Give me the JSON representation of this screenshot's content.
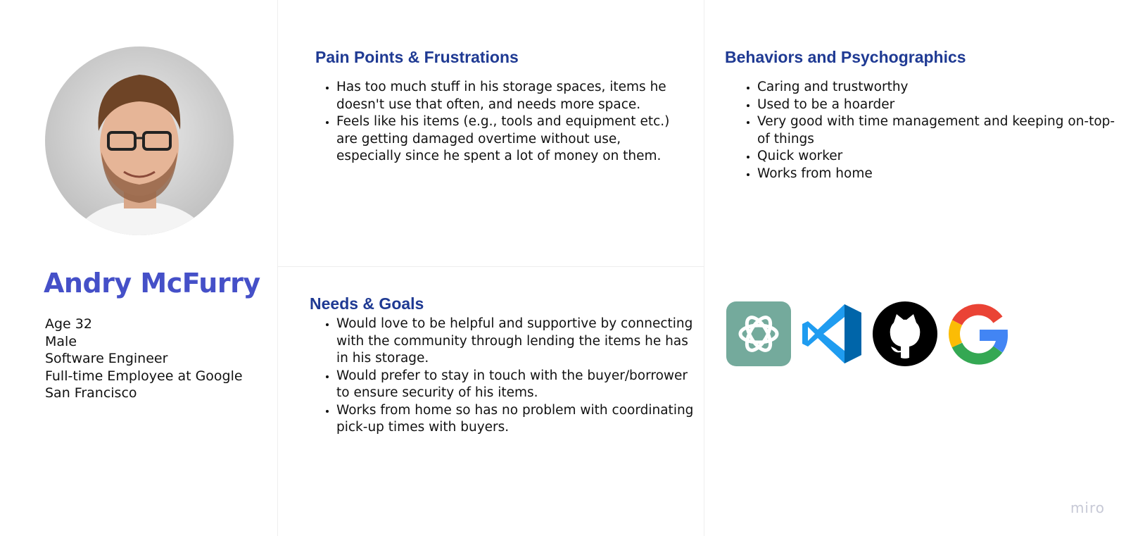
{
  "persona": {
    "name": "Andry McFurry",
    "demographics": [
      "Age 32",
      "Male",
      "Software Engineer",
      "Full-time Employee at Google",
      "San Francisco"
    ]
  },
  "pain_points": {
    "title": "Pain Points & Frustrations",
    "items": [
      "Has too much stuff in his storage spaces, items he doesn't use that often, and needs more space.",
      "Feels like his items (e.g., tools and equipment etc.) are getting damaged overtime without use, especially since he spent a lot of money on them."
    ]
  },
  "behaviors": {
    "title": "Behaviors and Psychographics",
    "items": [
      "Caring and trustworthy",
      "Used to be a hoarder",
      "Very good with time management and keeping on-top-of things",
      "Quick worker",
      "Works from home"
    ]
  },
  "needs": {
    "title": "Needs & Goals",
    "items": [
      "Would love to be helpful and supportive by connecting with the community through lending the items he has in his storage.",
      "Would prefer to stay in touch with the buyer/borrower to ensure security of his items.",
      "Works from home so has no problem with coordinating pick-up times with buyers."
    ]
  },
  "tools": [
    {
      "icon": "chatgpt-logo-icon",
      "color": "#74aa9c"
    },
    {
      "icon": "vscode-logo-icon",
      "color": "#0a7bd3"
    },
    {
      "icon": "github-logo-icon",
      "color": "#000000"
    },
    {
      "icon": "google-logo-icon",
      "color": "#4285f4"
    }
  ],
  "brand": "miro",
  "colors": {
    "name": "#4550c8",
    "heading": "#1f3a93",
    "brand": "#c7c9d6"
  }
}
